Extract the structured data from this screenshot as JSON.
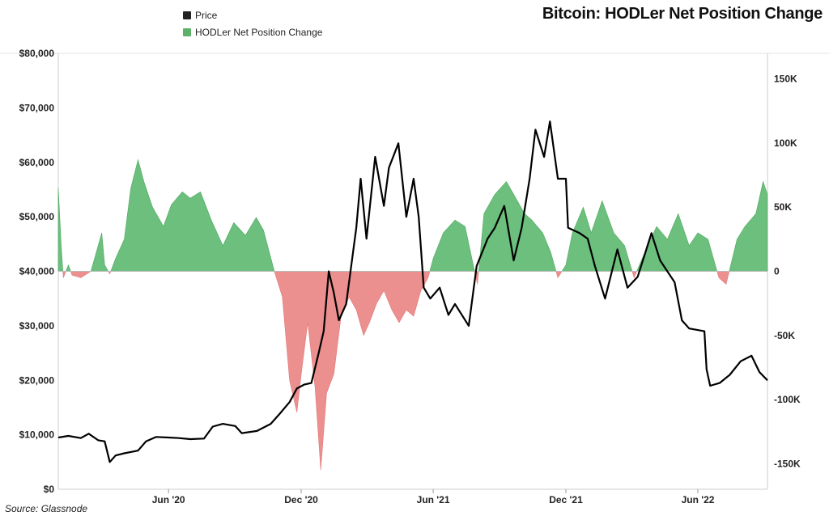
{
  "title": "Bitcoin: HODLer Net Position Change",
  "source": "Source: Glassnode",
  "legend": {
    "items": [
      {
        "label": "Price",
        "color": "#222222"
      },
      {
        "label": "HODLer Net Position Change",
        "color": "#5db26a"
      }
    ]
  },
  "colors": {
    "positive": "#6cbf7c",
    "negative": "#ec8f8f",
    "price": "#000000"
  },
  "chart_data": {
    "type": "line",
    "title": "Bitcoin: HODLer Net Position Change",
    "x_range": [
      "2020-01-01",
      "2022-09-05"
    ],
    "x_ticks": [
      {
        "date": "2020-06-01",
        "label": "Jun '20"
      },
      {
        "date": "2020-12-01",
        "label": "Dec '20"
      },
      {
        "date": "2021-06-01",
        "label": "Jun '21"
      },
      {
        "date": "2021-12-01",
        "label": "Dec '21"
      },
      {
        "date": "2022-06-01",
        "label": "Jun '22"
      }
    ],
    "y_left": {
      "min": 0,
      "max": 80000,
      "ticks": [
        {
          "value": 0,
          "label": "$0"
        },
        {
          "value": 10000,
          "label": "$10,000"
        },
        {
          "value": 20000,
          "label": "$20,000"
        },
        {
          "value": 30000,
          "label": "$30,000"
        },
        {
          "value": 40000,
          "label": "$40,000"
        },
        {
          "value": 50000,
          "label": "$50,000"
        },
        {
          "value": 60000,
          "label": "$60,000"
        },
        {
          "value": 70000,
          "label": "$70,000"
        },
        {
          "value": 80000,
          "label": "$80,000"
        }
      ]
    },
    "y_right": {
      "min": -170000,
      "max": 170000,
      "ticks": [
        {
          "value": 150000,
          "label": "150K"
        },
        {
          "value": 100000,
          "label": "100K"
        },
        {
          "value": 50000,
          "label": "50K"
        },
        {
          "value": 0,
          "label": "0"
        },
        {
          "value": -50000,
          "label": "-50K"
        },
        {
          "value": -100000,
          "label": "-100K"
        },
        {
          "value": -150000,
          "label": "-150K"
        }
      ]
    },
    "series": [
      {
        "name": "Price",
        "axis": "left",
        "points": [
          [
            "2020-01-01",
            9500
          ],
          [
            "2020-01-15",
            9800
          ],
          [
            "2020-02-01",
            9400
          ],
          [
            "2020-02-12",
            10200
          ],
          [
            "2020-02-25",
            9000
          ],
          [
            "2020-03-05",
            8800
          ],
          [
            "2020-03-12",
            5000
          ],
          [
            "2020-03-20",
            6200
          ],
          [
            "2020-04-01",
            6600
          ],
          [
            "2020-04-20",
            7100
          ],
          [
            "2020-05-01",
            8800
          ],
          [
            "2020-05-15",
            9600
          ],
          [
            "2020-06-01",
            9500
          ],
          [
            "2020-06-15",
            9400
          ],
          [
            "2020-07-01",
            9200
          ],
          [
            "2020-07-20",
            9300
          ],
          [
            "2020-08-01",
            11500
          ],
          [
            "2020-08-15",
            12000
          ],
          [
            "2020-09-01",
            11600
          ],
          [
            "2020-09-10",
            10300
          ],
          [
            "2020-10-01",
            10700
          ],
          [
            "2020-10-20",
            12000
          ],
          [
            "2020-11-01",
            13800
          ],
          [
            "2020-11-15",
            16000
          ],
          [
            "2020-11-25",
            18500
          ],
          [
            "2020-12-05",
            19200
          ],
          [
            "2020-12-15",
            19500
          ],
          [
            "2020-12-25",
            25000
          ],
          [
            "2021-01-01",
            29000
          ],
          [
            "2021-01-08",
            40000
          ],
          [
            "2021-01-15",
            36000
          ],
          [
            "2021-01-22",
            31000
          ],
          [
            "2021-02-01",
            34000
          ],
          [
            "2021-02-15",
            48000
          ],
          [
            "2021-02-21",
            57000
          ],
          [
            "2021-03-01",
            46000
          ],
          [
            "2021-03-13",
            61000
          ],
          [
            "2021-03-25",
            52000
          ],
          [
            "2021-04-01",
            59000
          ],
          [
            "2021-04-14",
            63500
          ],
          [
            "2021-04-25",
            50000
          ],
          [
            "2021-05-05",
            57000
          ],
          [
            "2021-05-12",
            50000
          ],
          [
            "2021-05-19",
            37000
          ],
          [
            "2021-05-28",
            35000
          ],
          [
            "2021-06-10",
            37000
          ],
          [
            "2021-06-22",
            32000
          ],
          [
            "2021-07-01",
            34000
          ],
          [
            "2021-07-20",
            30000
          ],
          [
            "2021-07-31",
            41000
          ],
          [
            "2021-08-15",
            46000
          ],
          [
            "2021-08-25",
            48000
          ],
          [
            "2021-09-07",
            52000
          ],
          [
            "2021-09-20",
            42000
          ],
          [
            "2021-10-01",
            48000
          ],
          [
            "2021-10-12",
            57000
          ],
          [
            "2021-10-20",
            66000
          ],
          [
            "2021-11-01",
            61000
          ],
          [
            "2021-11-09",
            67500
          ],
          [
            "2021-11-20",
            57000
          ],
          [
            "2021-12-01",
            57000
          ],
          [
            "2021-12-04",
            48000
          ],
          [
            "2021-12-20",
            47000
          ],
          [
            "2021-12-31",
            46000
          ],
          [
            "2022-01-10",
            41000
          ],
          [
            "2022-01-24",
            35000
          ],
          [
            "2022-02-10",
            44000
          ],
          [
            "2022-02-24",
            37000
          ],
          [
            "2022-03-10",
            39000
          ],
          [
            "2022-03-29",
            47000
          ],
          [
            "2022-04-10",
            42000
          ],
          [
            "2022-04-30",
            38000
          ],
          [
            "2022-05-10",
            31000
          ],
          [
            "2022-05-20",
            29500
          ],
          [
            "2022-06-10",
            29000
          ],
          [
            "2022-06-13",
            22000
          ],
          [
            "2022-06-18",
            19000
          ],
          [
            "2022-07-01",
            19500
          ],
          [
            "2022-07-15",
            21000
          ],
          [
            "2022-07-30",
            23500
          ],
          [
            "2022-08-14",
            24500
          ],
          [
            "2022-08-25",
            21500
          ],
          [
            "2022-09-05",
            20000
          ]
        ]
      },
      {
        "name": "HODLer Net Position Change",
        "axis": "right",
        "points": [
          [
            "2020-01-01",
            65000
          ],
          [
            "2020-01-05",
            20000
          ],
          [
            "2020-01-08",
            -5000
          ],
          [
            "2020-01-15",
            5000
          ],
          [
            "2020-01-20",
            -3000
          ],
          [
            "2020-02-01",
            -5000
          ],
          [
            "2020-02-15",
            0
          ],
          [
            "2020-03-01",
            30000
          ],
          [
            "2020-03-05",
            5000
          ],
          [
            "2020-03-12",
            -2000
          ],
          [
            "2020-03-20",
            10000
          ],
          [
            "2020-04-01",
            25000
          ],
          [
            "2020-04-10",
            65000
          ],
          [
            "2020-04-20",
            87000
          ],
          [
            "2020-04-28",
            70000
          ],
          [
            "2020-05-10",
            50000
          ],
          [
            "2020-05-25",
            35000
          ],
          [
            "2020-06-05",
            52000
          ],
          [
            "2020-06-20",
            62000
          ],
          [
            "2020-07-01",
            57000
          ],
          [
            "2020-07-15",
            62000
          ],
          [
            "2020-07-30",
            40000
          ],
          [
            "2020-08-15",
            20000
          ],
          [
            "2020-08-30",
            38000
          ],
          [
            "2020-09-15",
            28000
          ],
          [
            "2020-09-30",
            42000
          ],
          [
            "2020-10-10",
            32000
          ],
          [
            "2020-10-25",
            0
          ],
          [
            "2020-11-05",
            -20000
          ],
          [
            "2020-11-15",
            -85000
          ],
          [
            "2020-11-25",
            -110000
          ],
          [
            "2020-12-01",
            -80000
          ],
          [
            "2020-12-10",
            -40000
          ],
          [
            "2020-12-20",
            -90000
          ],
          [
            "2020-12-28",
            -155000
          ],
          [
            "2021-01-05",
            -95000
          ],
          [
            "2021-01-15",
            -80000
          ],
          [
            "2021-01-25",
            -35000
          ],
          [
            "2021-02-05",
            -20000
          ],
          [
            "2021-02-15",
            -30000
          ],
          [
            "2021-02-25",
            -50000
          ],
          [
            "2021-03-05",
            -40000
          ],
          [
            "2021-03-15",
            -25000
          ],
          [
            "2021-03-25",
            -15000
          ],
          [
            "2021-04-05",
            -30000
          ],
          [
            "2021-04-15",
            -40000
          ],
          [
            "2021-04-25",
            -30000
          ],
          [
            "2021-05-05",
            -35000
          ],
          [
            "2021-05-15",
            -15000
          ],
          [
            "2021-05-25",
            -5000
          ],
          [
            "2021-06-01",
            10000
          ],
          [
            "2021-06-15",
            30000
          ],
          [
            "2021-07-01",
            40000
          ],
          [
            "2021-07-15",
            35000
          ],
          [
            "2021-08-01",
            -10000
          ],
          [
            "2021-08-10",
            45000
          ],
          [
            "2021-08-25",
            60000
          ],
          [
            "2021-09-10",
            70000
          ],
          [
            "2021-09-25",
            55000
          ],
          [
            "2021-10-05",
            45000
          ],
          [
            "2021-10-15",
            40000
          ],
          [
            "2021-10-30",
            30000
          ],
          [
            "2021-11-10",
            15000
          ],
          [
            "2021-11-20",
            -5000
          ],
          [
            "2021-12-01",
            5000
          ],
          [
            "2021-12-10",
            30000
          ],
          [
            "2021-12-25",
            50000
          ],
          [
            "2022-01-05",
            30000
          ],
          [
            "2022-01-20",
            55000
          ],
          [
            "2022-02-05",
            30000
          ],
          [
            "2022-02-20",
            20000
          ],
          [
            "2022-03-05",
            -5000
          ],
          [
            "2022-03-20",
            15000
          ],
          [
            "2022-04-05",
            35000
          ],
          [
            "2022-04-20",
            25000
          ],
          [
            "2022-05-05",
            45000
          ],
          [
            "2022-05-20",
            20000
          ],
          [
            "2022-06-01",
            30000
          ],
          [
            "2022-06-15",
            25000
          ],
          [
            "2022-06-30",
            -5000
          ],
          [
            "2022-07-10",
            -10000
          ],
          [
            "2022-07-25",
            25000
          ],
          [
            "2022-08-05",
            35000
          ],
          [
            "2022-08-20",
            45000
          ],
          [
            "2022-08-30",
            70000
          ],
          [
            "2022-09-05",
            60000
          ]
        ]
      }
    ]
  }
}
